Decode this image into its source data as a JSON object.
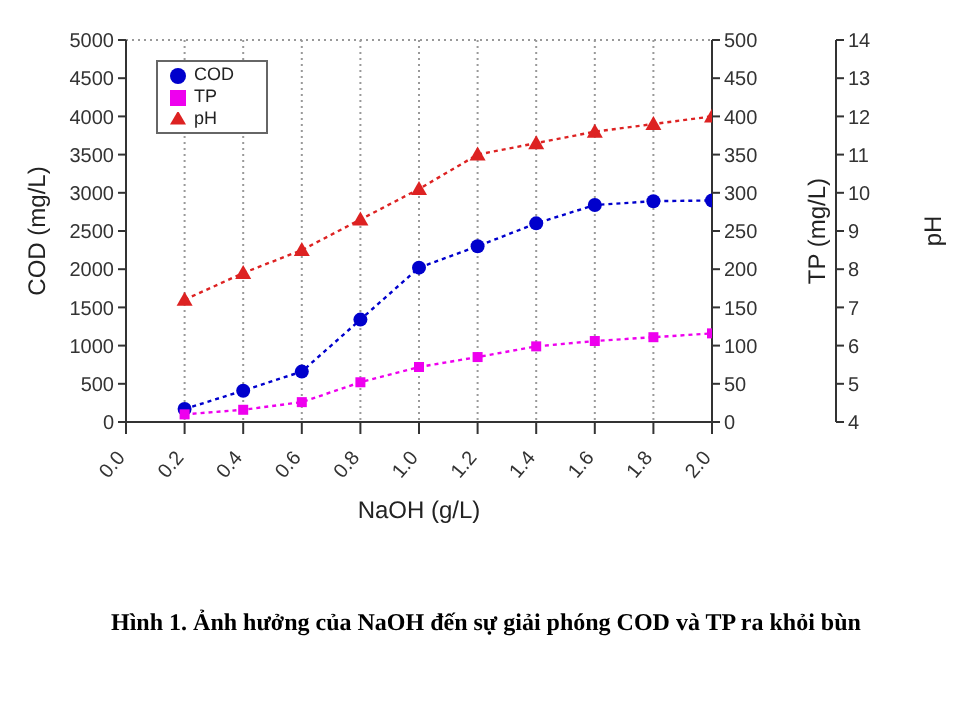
{
  "chart_data": {
    "type": "line",
    "x": [
      0.2,
      0.4,
      0.6,
      0.8,
      1.0,
      1.2,
      1.4,
      1.6,
      1.8,
      2.0
    ],
    "series": [
      {
        "name": "COD",
        "color": "#0000cc",
        "marker": "circle",
        "values": [
          170,
          410,
          660,
          1340,
          2020,
          2300,
          2600,
          2840,
          2890,
          2900
        ]
      },
      {
        "name": "TP",
        "color": "#ee00ee",
        "marker": "square",
        "axis": "y2",
        "values": [
          10,
          16,
          26,
          52,
          72,
          85,
          99,
          106,
          111,
          116
        ]
      },
      {
        "name": "pH",
        "color": "#dd2222",
        "marker": "triangle",
        "axis": "y3",
        "values": [
          7.2,
          7.9,
          8.5,
          9.3,
          10.1,
          11.0,
          11.3,
          11.6,
          11.8,
          12.0
        ]
      }
    ],
    "xlabel": "NaOH (g/L)",
    "ylabel": "COD (mg/L)",
    "y2label": "TP (mg/L)",
    "y3label": "pH",
    "xlim": [
      0,
      2.0
    ],
    "xticks": [
      {
        "value": 0,
        "label": "0.0"
      },
      {
        "value": 0.2,
        "label": "0.2"
      },
      {
        "value": 0.4,
        "label": "0.4"
      },
      {
        "value": 0.6,
        "label": "0.6"
      },
      {
        "value": 0.8,
        "label": "0.8"
      },
      {
        "value": 1.0,
        "label": "1.0"
      },
      {
        "value": 1.2,
        "label": "1.2"
      },
      {
        "value": 1.4,
        "label": "1.4"
      },
      {
        "value": 1.6,
        "label": "1.6"
      },
      {
        "value": 1.8,
        "label": "1.8"
      },
      {
        "value": 2.0,
        "label": "2.0"
      }
    ],
    "ylim": [
      0,
      5000
    ],
    "yticks": [
      0,
      500,
      1000,
      1500,
      2000,
      2500,
      3000,
      3500,
      4000,
      4500,
      5000
    ],
    "y2lim": [
      0,
      500
    ],
    "y2ticks": [
      0,
      50,
      100,
      150,
      200,
      250,
      300,
      350,
      400,
      450,
      500
    ],
    "y3lim": [
      4,
      14
    ],
    "y3ticks": [
      4,
      5,
      6,
      7,
      8,
      9,
      10,
      11,
      12,
      13,
      14
    ],
    "grid": true,
    "legend": "top left",
    "line_style": "dotted",
    "annotations": [
      "Hình 1. Ảnh hưởng của NaOH đến sự giải phóng COD và TP ra khỏi bùn"
    ]
  }
}
